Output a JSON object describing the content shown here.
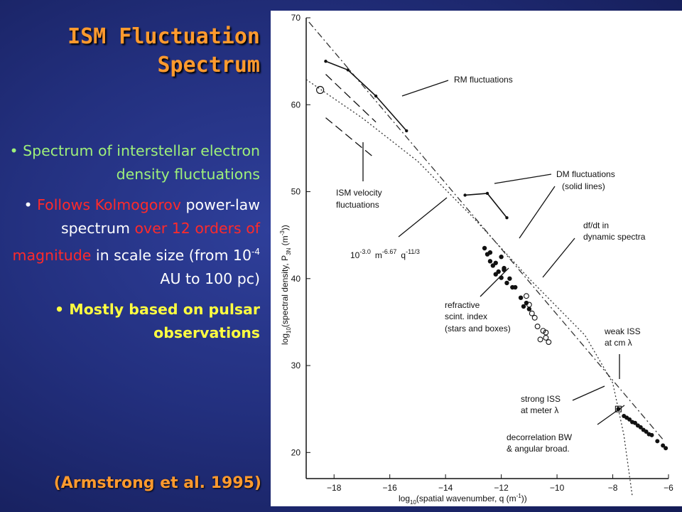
{
  "slide": {
    "title_line1": "ISM Fluctuation",
    "title_line2": "Spectrum",
    "bullet1": "Spectrum of interstellar electron density fluctuations",
    "bullet2_a": "Follows Kolmogorov",
    "bullet2_b": "power-law spectrum",
    "bullet2_c": "over",
    "bullet2_d": "12 orders of magnitude",
    "bullet2_e": "in scale size (from 10",
    "bullet2_f": "-4",
    "bullet2_g": " AU to 100 pc)",
    "bullet3": "Mostly based on pulsar observations",
    "citation": "(Armstrong et al. 1995)"
  },
  "colors": {
    "title": "#ff9a2e",
    "bullet1": "#9ef07a",
    "bullet2": "#ffffff",
    "bullet2_highlight": "#ff2a2a",
    "bullet3": "#ffff40",
    "background": "#23307f"
  },
  "chart_data": {
    "type": "scatter",
    "xlabel_prefix": "log",
    "xlabel_sub": "10",
    "xlabel_rest": "(spatial wavenumber, q (m",
    "xlabel_sup": "-1",
    "xlabel_end": "))",
    "ylabel_prefix": "log",
    "ylabel_sub": "10",
    "ylabel_mid": "(spectral density, P",
    "ylabel_sub2": "3N",
    "ylabel_rest": " (m",
    "ylabel_sup": "-3",
    "ylabel_end": "))",
    "xlim": [
      -19,
      -6
    ],
    "ylim": [
      17,
      70
    ],
    "xticks": [
      -18,
      -16,
      -14,
      -12,
      -10,
      -8,
      -6
    ],
    "yticks": [
      20,
      30,
      40,
      50,
      60,
      70
    ],
    "grid": false,
    "fit_line": {
      "x": [
        -18.9,
        -6.2
      ],
      "y": [
        69.5,
        21.5
      ]
    },
    "dotted_curve": {
      "x": [
        -19,
        -17,
        -15,
        -13,
        -11,
        -9,
        -8,
        -7.6,
        -7.3
      ],
      "y": [
        62.9,
        58.5,
        53.5,
        47,
        40,
        33.5,
        28,
        22,
        15
      ]
    },
    "rm_solid": {
      "x": [
        -18.3,
        -17.5,
        -16.5,
        -15.4
      ],
      "y": [
        65,
        64,
        61,
        57
      ]
    },
    "dm_solid": {
      "x": [
        -13.3,
        -12.5,
        -11.8
      ],
      "y": [
        49.6,
        49.8,
        47
      ]
    },
    "ism_velocity_dashes": [
      {
        "x": [
          -18.3,
          -16.5
        ],
        "y": [
          63.5,
          58
        ]
      },
      {
        "x": [
          -18.3,
          -16.6
        ],
        "y": [
          58.5,
          54
        ]
      }
    ],
    "refractive_points": {
      "x": [
        -12.6,
        -12.5,
        -12.4,
        -12.3,
        -12.2,
        -12.2,
        -12.1,
        -12.0,
        -11.9,
        -11.8,
        -11.7,
        -11.6,
        -12.4,
        -12.0,
        -11.9,
        -11.5,
        -11.3,
        -11.2,
        -11.1,
        -11.0
      ],
      "y": [
        43.5,
        42.8,
        42,
        41.5,
        41.8,
        40.5,
        40.8,
        40.1,
        41,
        39.5,
        40,
        39,
        43,
        42.5,
        41.2,
        39,
        37.8,
        36.8,
        37.2,
        36.5
      ]
    },
    "df_dt_points": {
      "x": [
        -11.1,
        -11.0,
        -10.9,
        -10.8,
        -10.7,
        -10.5,
        -10.4,
        -10.6,
        -10.4,
        -10.3
      ],
      "y": [
        38,
        37,
        36,
        35.5,
        34.5,
        34,
        33.8,
        33,
        33.2,
        32.7
      ]
    },
    "weak_iss_points": {
      "x": [
        -7.8,
        -7.6,
        -7.5,
        -7.4,
        -7.3,
        -7.2,
        -7.1,
        -7.0,
        -6.9,
        -6.8,
        -6.7,
        -6.6,
        -6.4,
        -6.2,
        -6.1
      ],
      "y": [
        25,
        24.2,
        24,
        23.8,
        23.5,
        23.4,
        23.1,
        22.9,
        22.6,
        22.4,
        22.1,
        22.0,
        21.3,
        20.8,
        20.5
      ]
    },
    "annotations": {
      "rm": "RM fluctuations",
      "ism_velocity_1": "ISM velocity",
      "ism_velocity_2": "fluctuations",
      "dm_1": "DM fluctuations",
      "dm_2": "(solid lines)",
      "dfdt_1": "df/dt in",
      "dfdt_2": "dynamic spectra",
      "formula_a": "10",
      "formula_a_sup": "-3.0",
      "formula_b": "m",
      "formula_b_sup": "-6.67",
      "formula_c": "q",
      "formula_c_sup": "-11/3",
      "refr_1": "refractive",
      "refr_2": "scint. index",
      "refr_3": "(stars and boxes)",
      "weak_1": "weak ISS",
      "weak_2": "at cm λ",
      "strong_1": "strong ISS",
      "strong_2": "at meter λ",
      "decor_1": "decorrelation BW",
      "decor_2": "& angular broad."
    }
  }
}
